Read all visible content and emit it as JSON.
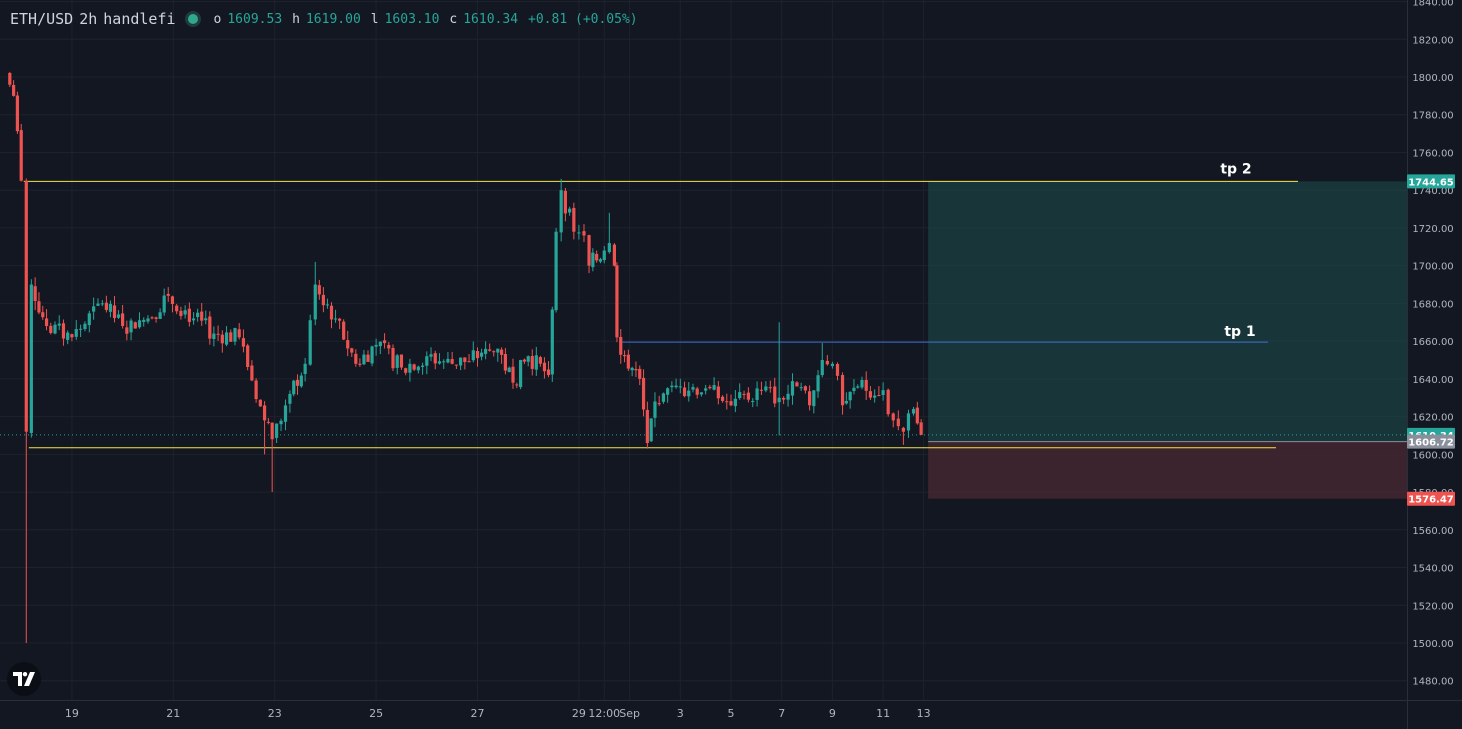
{
  "header": {
    "symbol": "ETH/USD",
    "interval": "2h",
    "author": "handlefi",
    "o_label": "o",
    "o_value": "1609.53",
    "h_label": "h",
    "h_value": "1619.00",
    "l_label": "l",
    "l_value": "1603.10",
    "c_label": "c",
    "c_value": "1610.34",
    "change": "+0.81 (+0.05%)"
  },
  "logo_text": "TV",
  "colors": {
    "background": "#131722",
    "up": "#26a69a",
    "down": "#ef5350",
    "grid": "#1e222d",
    "tp_line_top": "#f2e34d",
    "tp1_line": "#3b6fd4",
    "target_zone": "#1d4b4b",
    "stop_zone": "#4a2a32",
    "price_badge": "#26a69a",
    "stop_badge": "#ef5350",
    "entry_badge": "#8a8f9c"
  },
  "chart_data": {
    "type": "candlestick",
    "ylim": [
      1470,
      1840
    ],
    "y_ticks": [
      1480,
      1500,
      1520,
      1540,
      1560,
      1580,
      1600,
      1620,
      1640,
      1660,
      1680,
      1700,
      1720,
      1740,
      1760,
      1780,
      1800,
      1820,
      1840
    ],
    "y_tick_labels": [
      "1480.00",
      "1500.00",
      "1520.00",
      "1540.00",
      "1560.00",
      "1580.00",
      "1600.00",
      "1620.00",
      "1640.00",
      "1660.00",
      "1680.00",
      "1700.00",
      "1720.00",
      "1740.00",
      "1760.00",
      "1780.00",
      "1800.00",
      "1820.00",
      "1840.00"
    ],
    "x_range_days": [
      17.7,
      30.55
    ],
    "x_ticks": [
      {
        "day": 19,
        "label": "19"
      },
      {
        "day": 21,
        "label": "21"
      },
      {
        "day": 23,
        "label": "23"
      },
      {
        "day": 25,
        "label": "25"
      },
      {
        "day": 27,
        "label": "27"
      },
      {
        "day": 29,
        "label": "29"
      },
      {
        "day": 29.5,
        "label": "12:00"
      },
      {
        "day": 30.0,
        "label": "Sep"
      },
      {
        "day": 31.0,
        "label": "3"
      },
      {
        "day": 32.0,
        "label": "5"
      },
      {
        "day": 33.0,
        "label": "7"
      },
      {
        "day": 34.0,
        "label": "9"
      },
      {
        "day": 35.0,
        "label": "11"
      },
      {
        "day": 35.8,
        "label": "13"
      }
    ],
    "anchors": [
      {
        "day": 17.7,
        "close": 1802
      },
      {
        "day": 17.85,
        "close": 1790
      },
      {
        "day": 18.0,
        "close": 1745
      },
      {
        "day": 18.1,
        "close": 1612,
        "low": 1500
      },
      {
        "day": 18.2,
        "close": 1690
      },
      {
        "day": 18.5,
        "close": 1668
      },
      {
        "day": 19.0,
        "close": 1662
      },
      {
        "day": 19.6,
        "close": 1680
      },
      {
        "day": 20.0,
        "close": 1668
      },
      {
        "day": 20.5,
        "close": 1672
      },
      {
        "day": 20.9,
        "close": 1684
      },
      {
        "day": 21.4,
        "close": 1672
      },
      {
        "day": 21.8,
        "close": 1664
      },
      {
        "day": 22.3,
        "close": 1662
      },
      {
        "day": 22.8,
        "close": 1618,
        "low": 1600
      },
      {
        "day": 22.95,
        "close": 1608,
        "low": 1580
      },
      {
        "day": 23.3,
        "close": 1632
      },
      {
        "day": 23.6,
        "close": 1648
      },
      {
        "day": 23.8,
        "close": 1690,
        "high": 1702
      },
      {
        "day": 24.2,
        "close": 1672
      },
      {
        "day": 24.6,
        "close": 1648
      },
      {
        "day": 25.0,
        "close": 1658
      },
      {
        "day": 25.5,
        "close": 1646
      },
      {
        "day": 26.0,
        "close": 1652
      },
      {
        "day": 26.5,
        "close": 1648
      },
      {
        "day": 27.0,
        "close": 1651
      },
      {
        "day": 27.4,
        "close": 1656
      },
      {
        "day": 27.7,
        "close": 1638
      },
      {
        "day": 28.0,
        "close": 1652
      },
      {
        "day": 28.4,
        "close": 1642
      },
      {
        "day": 28.55,
        "close": 1718
      },
      {
        "day": 28.65,
        "close": 1740,
        "high": 1746
      },
      {
        "day": 28.9,
        "close": 1718
      },
      {
        "day": 29.1,
        "close": 1716
      },
      {
        "day": 29.2,
        "close": 1700
      },
      {
        "day": 29.5,
        "close": 1708
      },
      {
        "day": 29.6,
        "close": 1712,
        "high": 1728
      },
      {
        "day": 29.7,
        "close": 1700
      },
      {
        "day": 29.75,
        "close": 1662
      },
      {
        "day": 29.9,
        "close": 1652
      },
      {
        "day": 30.2,
        "close": 1640
      },
      {
        "day": 30.35,
        "close": 1606,
        "low": 1603
      },
      {
        "day": 30.5,
        "close": 1628
      },
      {
        "day": 31.0,
        "close": 1636
      },
      {
        "day": 31.5,
        "close": 1635
      },
      {
        "day": 32.0,
        "close": 1626
      },
      {
        "day": 32.6,
        "close": 1634
      },
      {
        "day": 32.95,
        "close": 1630,
        "high": 1670,
        "low": 1610
      },
      {
        "day": 33.3,
        "close": 1636
      },
      {
        "day": 33.55,
        "close": 1626
      },
      {
        "day": 33.8,
        "close": 1650,
        "high": 1659
      },
      {
        "day": 34.0,
        "close": 1648
      },
      {
        "day": 34.2,
        "close": 1626
      },
      {
        "day": 34.5,
        "close": 1636
      },
      {
        "day": 35.0,
        "close": 1634
      },
      {
        "day": 35.2,
        "close": 1618
      },
      {
        "day": 35.4,
        "close": 1612,
        "low": 1605
      },
      {
        "day": 35.6,
        "close": 1624
      },
      {
        "day": 35.75,
        "close": 1610.34
      }
    ],
    "levels": [
      {
        "name": "tp 2",
        "value": 1744.65,
        "label": "tp 2",
        "badge": "1744.65"
      },
      {
        "name": "tp 1",
        "value": 1659.5,
        "label": "tp 1"
      },
      {
        "name": "support",
        "value": 1603.5
      }
    ],
    "position": {
      "entry": 1606.72,
      "entry_badge": "1606.72",
      "target": 1744.65,
      "stop": 1576.47,
      "stop_badge": "1576.47",
      "start_day": 35.75
    },
    "last_price": 1610.34,
    "last_price_badge": "1610.34"
  }
}
